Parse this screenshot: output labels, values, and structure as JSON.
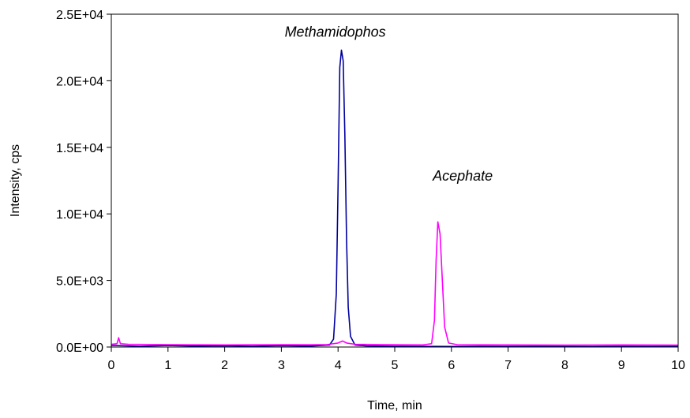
{
  "chart_data": {
    "type": "line",
    "xlabel": "Time, min",
    "ylabel": "Intensity, cps",
    "xlim": [
      0,
      10
    ],
    "ylim": [
      0,
      25000
    ],
    "x_ticks": [
      0,
      1,
      2,
      3,
      4,
      5,
      6,
      7,
      8,
      9,
      10
    ],
    "x_tick_labels": [
      "0",
      "1",
      "2",
      "3",
      "4",
      "5",
      "6",
      "7",
      "8",
      "9",
      "10"
    ],
    "y_ticks": [
      0,
      5000,
      10000,
      15000,
      20000,
      25000
    ],
    "y_tick_labels": [
      "0.0E+00",
      "5.0E+03",
      "1.0E+04",
      "1.5E+04",
      "2.0E+04",
      "2.5E+04"
    ],
    "grid": false,
    "annotations": [
      {
        "text": "Methamidophos",
        "x": 3.95,
        "y": 23300
      },
      {
        "text": "Acephate",
        "x": 6.2,
        "y": 12500
      }
    ],
    "series": [
      {
        "color": "#0000a0",
        "points": [
          [
            0.0,
            120
          ],
          [
            0.5,
            60
          ],
          [
            1.0,
            110
          ],
          [
            1.5,
            70
          ],
          [
            2.0,
            90
          ],
          [
            2.5,
            60
          ],
          [
            3.0,
            100
          ],
          [
            3.5,
            70
          ],
          [
            3.85,
            150
          ],
          [
            3.92,
            600
          ],
          [
            3.97,
            4000
          ],
          [
            4.0,
            12000
          ],
          [
            4.03,
            21000
          ],
          [
            4.06,
            22300
          ],
          [
            4.09,
            21500
          ],
          [
            4.12,
            16000
          ],
          [
            4.15,
            8000
          ],
          [
            4.18,
            3000
          ],
          [
            4.22,
            800
          ],
          [
            4.3,
            150
          ],
          [
            4.5,
            80
          ],
          [
            5.0,
            60
          ],
          [
            5.5,
            50
          ],
          [
            6.0,
            40
          ],
          [
            6.5,
            60
          ],
          [
            7.0,
            50
          ],
          [
            7.5,
            60
          ],
          [
            8.0,
            50
          ],
          [
            8.5,
            40
          ],
          [
            9.0,
            60
          ],
          [
            9.5,
            50
          ],
          [
            10.0,
            60
          ]
        ]
      },
      {
        "color": "#ff00ff",
        "points": [
          [
            0.0,
            200
          ],
          [
            0.1,
            250
          ],
          [
            0.13,
            700
          ],
          [
            0.16,
            250
          ],
          [
            0.3,
            200
          ],
          [
            1.0,
            180
          ],
          [
            2.0,
            160
          ],
          [
            3.0,
            170
          ],
          [
            3.8,
            180
          ],
          [
            4.0,
            300
          ],
          [
            4.08,
            450
          ],
          [
            4.15,
            300
          ],
          [
            4.3,
            200
          ],
          [
            5.0,
            170
          ],
          [
            5.5,
            160
          ],
          [
            5.65,
            250
          ],
          [
            5.7,
            2000
          ],
          [
            5.73,
            6500
          ],
          [
            5.76,
            9400
          ],
          [
            5.8,
            8500
          ],
          [
            5.84,
            5000
          ],
          [
            5.88,
            1500
          ],
          [
            5.95,
            300
          ],
          [
            6.1,
            180
          ],
          [
            7.0,
            160
          ],
          [
            8.0,
            150
          ],
          [
            9.0,
            160
          ],
          [
            10.0,
            150
          ]
        ]
      }
    ]
  }
}
